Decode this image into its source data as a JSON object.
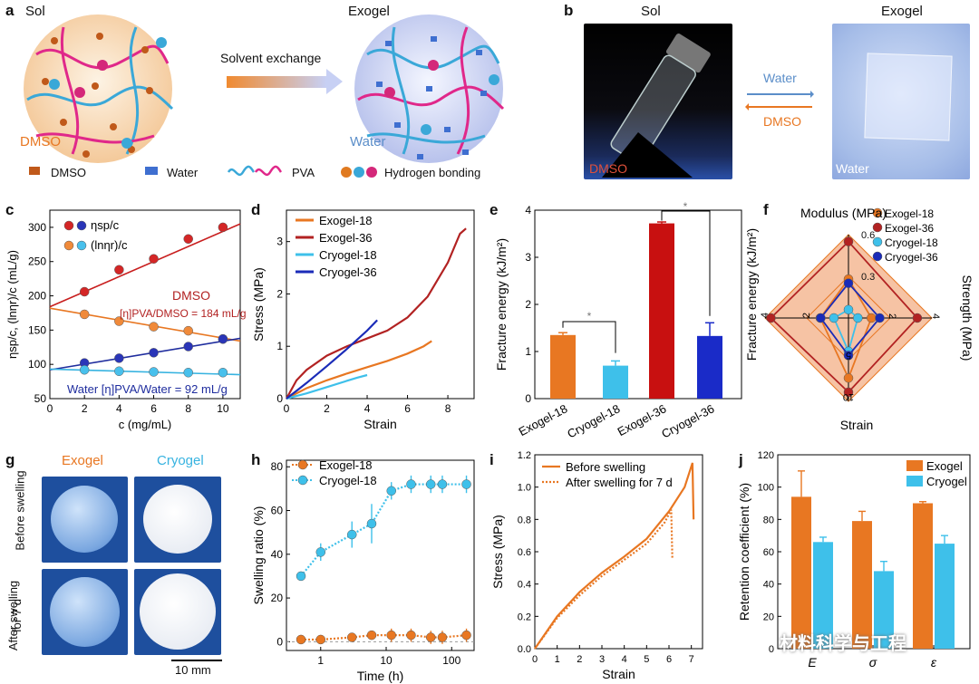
{
  "panel_a": {
    "letter": "a",
    "sol": "Sol",
    "exogel": "Exogel",
    "arrow": "Solvent exchange",
    "dmso": "DMSO",
    "water": "Water",
    "legend": [
      "DMSO",
      "Water",
      "PVA",
      "Hydrogen bonding"
    ]
  },
  "panel_b": {
    "letter": "b",
    "sol": "Sol",
    "exogel": "Exogel",
    "water_arrow": "Water",
    "dmso_arrow": "DMSO",
    "dmso_photo": "DMSO",
    "water_photo": "Water"
  },
  "panel_g": {
    "letter": "g",
    "exogel": "Exogel",
    "cryogel": "Cryogel",
    "before": "Before swelling",
    "after1": "After swelling",
    "after2": "for 7 d",
    "scale": "10 mm"
  },
  "colors": {
    "dmso": "#b22222",
    "orange": "#e87722",
    "water_dark": "#1f2d9e",
    "water_light": "#37b3e0",
    "blue": "#1a2bb8",
    "cyan": "#3ec0ea"
  },
  "chart_data": [
    {
      "panel": "c",
      "type": "scatter",
      "xlabel": "c (mg/mL)",
      "ylabel": "ηsp/c, (lnηr)/c (mL/g)",
      "xlim": [
        0,
        11
      ],
      "ylim": [
        50,
        325
      ],
      "xticks": [
        "0",
        "2",
        "4",
        "6",
        "8",
        "10"
      ],
      "yticks": [
        "50",
        "100",
        "150",
        "200",
        "250",
        "300"
      ],
      "legend": [
        "ηsp/c",
        "(lnηr)/c"
      ],
      "ann_dmso": "DMSO",
      "ann_dmso_eq": "[η]PVA/DMSO = 184 mL/g",
      "ann_water": "Water [η]PVA/Water = 92 mL/g",
      "series": [
        {
          "name": "DMSO ηsp/c",
          "x": [
            2,
            4,
            6,
            8,
            10
          ],
          "y": [
            206,
            238,
            254,
            283,
            300
          ],
          "fit": [
            184,
            305
          ]
        },
        {
          "name": "DMSO (lnηr)/c",
          "x": [
            2,
            4,
            6,
            8,
            10
          ],
          "y": [
            173,
            163,
            155,
            149,
            137
          ],
          "fit": [
            182,
            134
          ]
        },
        {
          "name": "Water ηsp/c",
          "x": [
            2,
            4,
            6,
            8,
            10
          ],
          "y": [
            102,
            109,
            117,
            126,
            137
          ],
          "fit": [
            92,
            138
          ]
        },
        {
          "name": "Water (lnηr)/c",
          "x": [
            2,
            4,
            6,
            8,
            10
          ],
          "y": [
            92,
            90,
            89,
            88,
            88
          ],
          "fit": [
            93,
            85
          ]
        }
      ]
    },
    {
      "panel": "d",
      "type": "line",
      "xlabel": "Strain",
      "ylabel": "Stress (MPa)",
      "xlim": [
        0,
        9.3
      ],
      "ylim": [
        0,
        3.6
      ],
      "xticks": [
        "0",
        "2",
        "4",
        "6",
        "8"
      ],
      "yticks": [
        "0",
        "1",
        "2",
        "3"
      ],
      "series": [
        {
          "name": "Exogel-18",
          "x": [
            0,
            1,
            2,
            3,
            4,
            5,
            6,
            6.8,
            7.2
          ],
          "y": [
            0,
            0.2,
            0.35,
            0.48,
            0.6,
            0.72,
            0.86,
            1.0,
            1.1
          ]
        },
        {
          "name": "Exogel-36",
          "x": [
            0,
            0.5,
            1,
            2,
            3,
            4,
            5,
            6,
            7,
            8,
            8.6,
            8.9
          ],
          "y": [
            0,
            0.35,
            0.55,
            0.82,
            1.0,
            1.15,
            1.3,
            1.55,
            1.95,
            2.6,
            3.15,
            3.25
          ]
        },
        {
          "name": "Cryogel-18",
          "x": [
            0,
            0.5,
            1,
            2,
            3,
            3.5,
            4.0
          ],
          "y": [
            0,
            0.05,
            0.1,
            0.22,
            0.34,
            0.4,
            0.45
          ]
        },
        {
          "name": "Cryogel-36",
          "x": [
            0,
            0.5,
            1,
            2,
            3,
            4,
            4.5
          ],
          "y": [
            0,
            0.15,
            0.3,
            0.62,
            0.95,
            1.3,
            1.5
          ]
        }
      ]
    },
    {
      "panel": "e",
      "type": "bar",
      "ylabel": "Fracture energy (kJ/m²)",
      "ylim": [
        0,
        4
      ],
      "yticks": [
        "0",
        "1",
        "2",
        "3",
        "4"
      ],
      "categories": [
        "Exogel-18",
        "Cryogel-18",
        "Exogel-36",
        "Cryogel-36"
      ],
      "values": [
        1.35,
        0.7,
        3.72,
        1.33
      ],
      "errors": [
        0.05,
        0.1,
        0.03,
        0.28
      ],
      "sig": "*"
    },
    {
      "panel": "f",
      "type": "radar",
      "axes": [
        "Modulus (MPa)",
        "Strength (MPa)",
        "Strain",
        "Fracture energy (kJ/m²)"
      ],
      "ticks": {
        "modulus": [
          "0.3",
          "0.6"
        ],
        "strength": [
          "2",
          "4"
        ],
        "strain": [
          "5",
          "10"
        ],
        "fracture": [
          "2",
          "4"
        ]
      },
      "series": [
        {
          "name": "Exogel-18",
          "values": [
            0.28,
            1.1,
            7.2,
            1.35
          ]
        },
        {
          "name": "Exogel-36",
          "values": [
            0.55,
            3.3,
            8.9,
            3.72
          ]
        },
        {
          "name": "Cryogel-18",
          "values": [
            0.06,
            0.45,
            4.0,
            0.7
          ]
        },
        {
          "name": "Cryogel-36",
          "values": [
            0.25,
            1.5,
            4.5,
            1.33
          ]
        }
      ]
    },
    {
      "panel": "h",
      "type": "scatter",
      "xlabel": "Time (h)",
      "ylabel": "Swelling ratio (%)",
      "xscale": "log",
      "xlim": [
        0.3,
        220
      ],
      "ylim": [
        -4,
        83
      ],
      "xticks": [
        "1",
        "10",
        "100"
      ],
      "yticks": [
        "0",
        "20",
        "40",
        "60",
        "80"
      ],
      "series": [
        {
          "name": "Exogel-18",
          "x": [
            0.5,
            1,
            3,
            6,
            12,
            24,
            48,
            72,
            168
          ],
          "y": [
            1,
            1,
            2,
            3,
            3,
            3,
            2,
            2,
            3
          ],
          "err": [
            1,
            1,
            1,
            1,
            3,
            3,
            3,
            3,
            3
          ]
        },
        {
          "name": "Cryogel-18",
          "x": [
            0.5,
            1,
            3,
            6,
            12,
            24,
            48,
            72,
            168
          ],
          "y": [
            30,
            41,
            49,
            54,
            69,
            72,
            72,
            72,
            72
          ],
          "err": [
            1,
            4,
            6,
            9,
            4,
            4,
            4,
            4,
            4
          ]
        }
      ]
    },
    {
      "panel": "i",
      "type": "line",
      "xlabel": "Strain",
      "ylabel": "Stress (MPa)",
      "xlim": [
        0,
        7.5
      ],
      "ylim": [
        0,
        1.2
      ],
      "xticks": [
        "0",
        "1",
        "2",
        "3",
        "4",
        "5",
        "6",
        "7"
      ],
      "yticks": [
        "0.0",
        "0.2",
        "0.4",
        "0.6",
        "0.8",
        "1.0",
        "1.2"
      ],
      "series": [
        {
          "name": "Before swelling",
          "x": [
            0,
            1,
            2,
            3,
            4,
            5,
            6,
            6.7,
            7.05,
            7.1
          ],
          "y": [
            0,
            0.2,
            0.35,
            0.47,
            0.57,
            0.68,
            0.85,
            1.0,
            1.15,
            0.8
          ]
        },
        {
          "name": "After swelling for 7 d",
          "x": [
            0,
            1,
            2,
            3,
            4,
            5,
            5.8,
            6.1,
            6.15
          ],
          "y": [
            0,
            0.19,
            0.33,
            0.45,
            0.55,
            0.65,
            0.78,
            0.86,
            0.56
          ]
        }
      ]
    },
    {
      "panel": "j",
      "type": "bar",
      "ylabel": "Retention coefficient (%)",
      "ylim": [
        0,
        120
      ],
      "yticks": [
        "0",
        "20",
        "40",
        "60",
        "80",
        "100",
        "120"
      ],
      "categories": [
        "E",
        "σ",
        "ε"
      ],
      "series": [
        {
          "name": "Exogel",
          "values": [
            94,
            79,
            90
          ],
          "errors": [
            16,
            6,
            1
          ]
        },
        {
          "name": "Cryogel",
          "values": [
            66,
            48,
            65
          ],
          "errors": [
            3,
            6,
            5
          ]
        }
      ]
    }
  ],
  "watermark": "材料科学与工程"
}
